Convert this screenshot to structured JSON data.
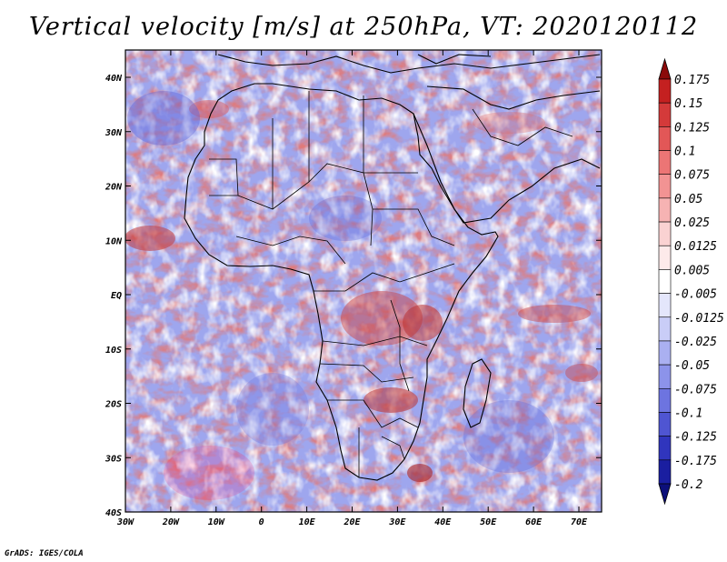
{
  "title": "Vertical velocity [m/s] at 250hPa, VT: 2020120112",
  "credit": "GrADS: IGES/COLA",
  "map": {
    "region": "Africa",
    "lat_labels": [
      "40N",
      "30N",
      "20N",
      "10N",
      "EQ",
      "10S",
      "20S",
      "30S",
      "40S"
    ],
    "lon_labels": [
      "30W",
      "20W",
      "10W",
      "0",
      "10E",
      "20E",
      "30E",
      "40E",
      "50E",
      "60E",
      "70E"
    ],
    "lat_range": [
      -40,
      45
    ],
    "lon_range": [
      -30,
      75
    ]
  },
  "colorbar": {
    "labels": [
      "0.175",
      "0.15",
      "0.125",
      "0.1",
      "0.075",
      "0.05",
      "0.025",
      "0.0125",
      "0.005",
      "-0.005",
      "-0.0125",
      "-0.025",
      "-0.05",
      "-0.075",
      "-0.1",
      "-0.125",
      "-0.175",
      "-0.2"
    ],
    "colors": [
      "#8b0a0a",
      "#c42020",
      "#d43a3a",
      "#e25757",
      "#ec7575",
      "#f29393",
      "#f6b3b3",
      "#fad2d2",
      "#fdeaea",
      "#ffffff",
      "#e4e6fb",
      "#c9cdf7",
      "#aab0f1",
      "#8c93ea",
      "#6d74e0",
      "#4f55d2",
      "#3035bd",
      "#1a1ea0",
      "#0c0f7a"
    ]
  }
}
